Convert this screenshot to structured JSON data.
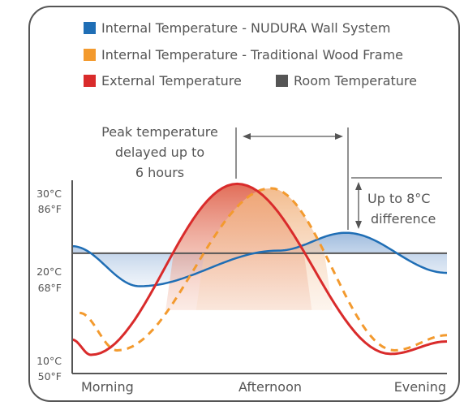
{
  "chart_data": {
    "type": "line",
    "categories": [
      "Morning",
      "Afternoon",
      "Evening"
    ],
    "y_ticks": [
      {
        "value": 30,
        "celsius": "30°C",
        "fahrenheit": "86°F"
      },
      {
        "value": 20,
        "celsius": "20°C",
        "fahrenheit": "68°F"
      },
      {
        "value": 10,
        "celsius": "10°C",
        "fahrenheit": "50°F"
      }
    ],
    "ylim": [
      8.7,
      30.4
    ],
    "legend": [
      {
        "label": "Internal Temperature - NUDURA Wall System",
        "color": "#1f6eb5"
      },
      {
        "label": "Internal Temperature - Traditional Wood Frame",
        "color": "#f39a2e"
      },
      {
        "label": "External Temperature",
        "color": "#d92b2b"
      },
      {
        "label": "Room Temperature",
        "color": "#555555"
      }
    ],
    "series": [
      {
        "name": "Internal Temperature - NUDURA Wall System",
        "style": "solid",
        "points": [
          [
            0.0,
            23.0
          ],
          [
            0.18,
            18.5
          ],
          [
            0.55,
            22.5
          ],
          [
            0.73,
            24.5
          ],
          [
            1.0,
            20.0
          ]
        ]
      },
      {
        "name": "Internal Temperature - Traditional Wood Frame",
        "style": "dashed",
        "points": [
          [
            0.02,
            15.5
          ],
          [
            0.12,
            11.3
          ],
          [
            0.53,
            29.5
          ],
          [
            0.86,
            11.3
          ],
          [
            1.0,
            13.0
          ]
        ]
      },
      {
        "name": "External Temperature",
        "style": "solid",
        "points": [
          [
            0.0,
            12.5
          ],
          [
            0.05,
            10.8
          ],
          [
            0.44,
            30.0
          ],
          [
            0.85,
            10.9
          ],
          [
            1.0,
            12.3
          ]
        ]
      },
      {
        "name": "Room Temperature",
        "style": "solid",
        "points": [
          [
            0.0,
            22.2
          ],
          [
            1.0,
            22.2
          ]
        ]
      }
    ],
    "annotations": {
      "peak_delay": [
        "Peak temperature",
        "delayed up to",
        "6 hours"
      ],
      "difference": [
        "Up to 8°C",
        "difference"
      ]
    },
    "colors": {
      "frame": "#555555",
      "axis": "#555555",
      "blue_fill": "#b9cee6",
      "red_fill": "#e27a63",
      "orange_fill": "#f4c39a"
    }
  }
}
